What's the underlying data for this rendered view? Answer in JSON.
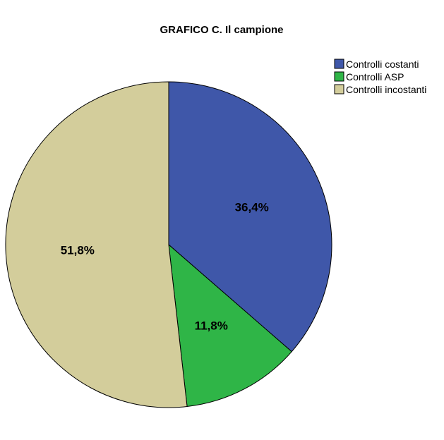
{
  "chart_data": {
    "type": "pie",
    "title": "GRAFICO C. Il campione",
    "categories": [
      "Controlli costanti",
      "Controlli ASP",
      "Controlli incostanti"
    ],
    "values": [
      36.4,
      11.8,
      51.8
    ],
    "value_labels": [
      "36,4%",
      "11,8%",
      "51,8%"
    ],
    "colors": [
      "#3f57a9",
      "#2fb547",
      "#d3cd9b"
    ],
    "legend_position": "top-right"
  }
}
